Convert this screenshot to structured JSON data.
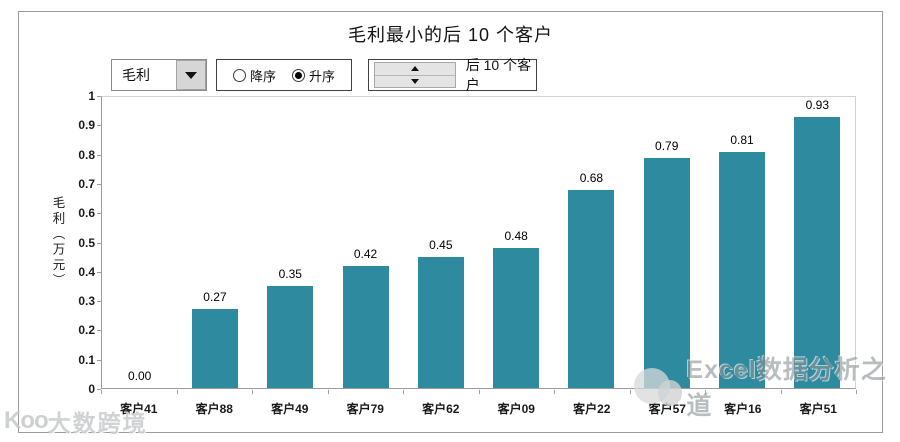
{
  "title": "毛利最小的后 10 个客户",
  "controls": {
    "field_dropdown": {
      "value": "毛利"
    },
    "sort": {
      "options": [
        {
          "label": "降序",
          "selected": false
        },
        {
          "label": "升序",
          "selected": true
        }
      ]
    },
    "spinner_label": "后 10 个客户"
  },
  "chart_data": {
    "type": "bar",
    "categories": [
      "客户41",
      "客户88",
      "客户49",
      "客户79",
      "客户62",
      "客户09",
      "客户22",
      "客户57",
      "客户16",
      "客户51"
    ],
    "values": [
      0.0,
      0.27,
      0.35,
      0.42,
      0.45,
      0.48,
      0.68,
      0.79,
      0.81,
      0.93
    ],
    "value_labels": [
      "0.00",
      "0.27",
      "0.35",
      "0.42",
      "0.45",
      "0.48",
      "0.68",
      "0.79",
      "0.81",
      "0.93"
    ],
    "title": "毛利最小的后 10 个客户",
    "xlabel": "",
    "ylabel": "毛利（万元）",
    "ylim": [
      0,
      1
    ],
    "ytick_step": 0.1,
    "yticks": [
      "0",
      "0.1",
      "0.2",
      "0.3",
      "0.4",
      "0.5",
      "0.6",
      "0.7",
      "0.8",
      "0.9",
      "1"
    ],
    "grid": false,
    "legend": null,
    "bar_color": "#2E8A9E"
  },
  "watermarks": {
    "bottom_right": "Excel数据分析之道",
    "bottom_left_logo": "Koo",
    "bottom_left": "大数跨境"
  }
}
